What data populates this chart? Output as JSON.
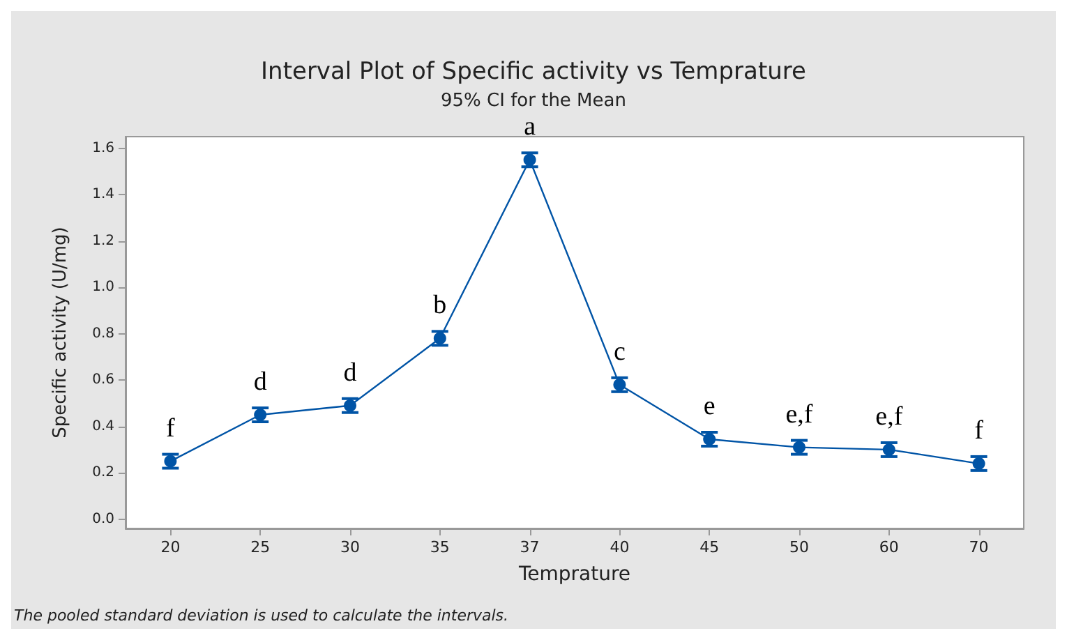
{
  "chart_data": {
    "type": "line",
    "title": "Interval Plot of Specific activity vs Temprature",
    "subtitle": "95% CI for the Mean",
    "xlabel": "Temprature",
    "ylabel": "Specific activity (U/mg)",
    "categories": [
      "20",
      "25",
      "30",
      "35",
      "37",
      "40",
      "45",
      "50",
      "60",
      "70"
    ],
    "series": [
      {
        "color": "#0054a6",
        "values": [
          0.25,
          0.45,
          0.49,
          0.78,
          1.55,
          0.58,
          0.345,
          0.31,
          0.3,
          0.24
        ],
        "errors": [
          0.03,
          0.03,
          0.03,
          0.03,
          0.03,
          0.03,
          0.03,
          0.03,
          0.03,
          0.03
        ]
      }
    ],
    "ylim": [
      -0.04,
      1.65
    ],
    "yticks": [
      {
        "value": 0,
        "label": "0.0"
      },
      0.2,
      0.4,
      0.6,
      0.8,
      {
        "value": 1,
        "label": "1.0"
      },
      1.2,
      1.4,
      1.6
    ],
    "grid": false,
    "marker": "circle",
    "line_style": "solid",
    "annotations": [
      {
        "text": "f",
        "x": "20",
        "y": 0.25
      },
      {
        "text": "d",
        "x": "25",
        "y": 0.45
      },
      {
        "text": "d",
        "x": "30",
        "y": 0.49
      },
      {
        "text": "b",
        "x": "35",
        "y": 0.78
      },
      {
        "text": "a",
        "x": "37",
        "y": 1.55
      },
      {
        "text": "c",
        "x": "40",
        "y": 0.58
      },
      {
        "text": "e",
        "x": "45",
        "y": 0.345
      },
      {
        "text": "e,f",
        "x": "50",
        "y": 0.31
      },
      {
        "text": "e,f",
        "x": "60",
        "y": 0.3
      },
      {
        "text": "f",
        "x": "70",
        "y": 0.24
      },
      "The pooled standard deviation is used to calculate the intervals."
    ]
  }
}
